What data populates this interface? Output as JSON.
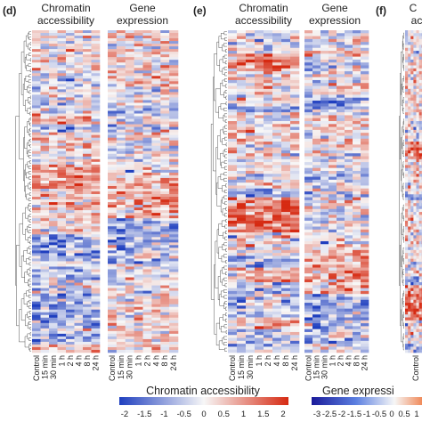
{
  "panels": [
    {
      "letter": "(d)",
      "heatmaps": [
        {
          "title_line1": "Chromatin",
          "title_line2": "accessibility",
          "kind": "chromatin"
        },
        {
          "title_line1": "Gene",
          "title_line2": "expression",
          "kind": "gene"
        }
      ]
    },
    {
      "letter": "(e)",
      "heatmaps": [
        {
          "title_line1": "Chromatin",
          "title_line2": "accessibility",
          "kind": "chromatin"
        },
        {
          "title_line1": "Gene",
          "title_line2": "expression",
          "kind": "gene"
        }
      ]
    },
    {
      "letter": "(f)",
      "heatmaps": [
        {
          "title_line1": "C",
          "title_line2": "ac",
          "kind": "chromatin"
        }
      ]
    }
  ],
  "timepoints": [
    "Control",
    "15 min",
    "30 min",
    "1 h",
    "2 h",
    "4 h",
    "8 h",
    "24 h"
  ],
  "colorbars": [
    {
      "title": "Chromatin accessibility",
      "ticks": [
        "-2",
        "-1.5",
        "-1",
        "-0.5",
        "0",
        "0.5",
        "1",
        "1.5",
        "2"
      ],
      "min": -2,
      "max": 2
    },
    {
      "title": "Gene expressi",
      "ticks": [
        "-3",
        "-2.5",
        "-2",
        "-1.5",
        "-1",
        "-0.5",
        "0",
        "0.5",
        "1"
      ],
      "min": -3,
      "max": 1
    }
  ],
  "colors": {
    "low": "#1f3fbf",
    "mid": "#f7f7f7",
    "high": "#d62a12",
    "text": "#222222"
  },
  "chart_data": {
    "type": "heatmap",
    "columns": [
      "Control",
      "15 min",
      "30 min",
      "1 h",
      "2 h",
      "4 h",
      "8 h",
      "24 h"
    ],
    "color_scale_chromatin": [
      -2,
      2
    ],
    "color_scale_gene": [
      -3,
      1
    ],
    "rows_panel_d": 120,
    "rows_panel_e": 110
  }
}
